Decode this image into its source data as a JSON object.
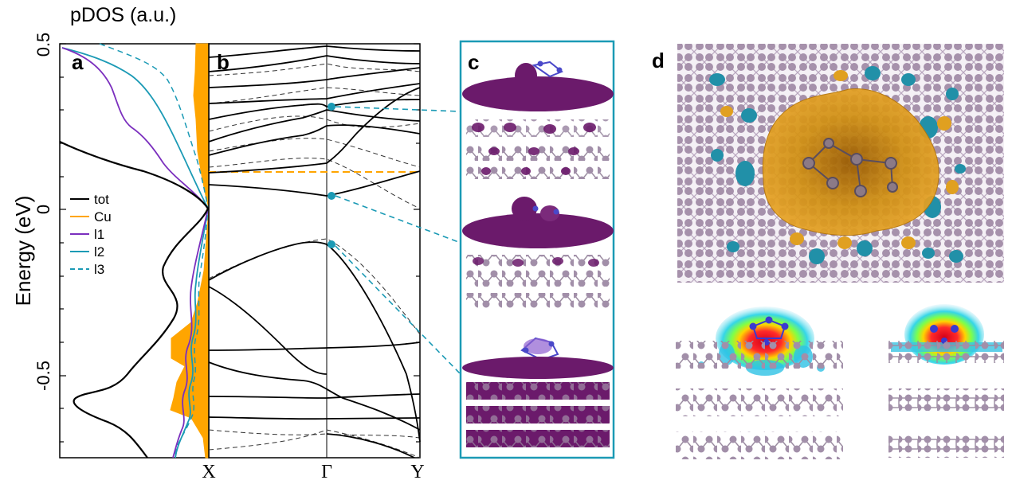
{
  "figure": {
    "top_title": "pDOS (a.u.)",
    "ylabel": "Energy (eV)",
    "panel_a": "a",
    "panel_b": "b",
    "panel_c": "c",
    "panel_d": "d",
    "yticks": [
      "0.5",
      "0",
      "-0.5"
    ],
    "xticks": [
      "X",
      "Γ",
      "Y"
    ]
  },
  "chart_data": [
    {
      "panel": "a",
      "type": "line",
      "title": "",
      "xlabel": "pDOS (a.u.)",
      "ylabel": "Energy (eV)",
      "ylim": [
        -0.75,
        0.5
      ],
      "legend": [
        "tot",
        "Cu",
        "l1",
        "l2",
        "l3"
      ],
      "legend_position": "center-left",
      "colors": {
        "tot": "#000000",
        "Cu": "#FFA500",
        "l1": "#7B2FBE",
        "l2": "#1B9AB5",
        "l3": "#1B9AB5"
      },
      "series": [
        {
          "name": "tot",
          "values": [
            [
              0.0,
              0.2
            ],
            [
              0.6,
              0.12
            ],
            [
              0.95,
              0.0
            ],
            [
              0.55,
              -0.2
            ],
            [
              0.2,
              -0.55
            ],
            [
              0.6,
              -0.65
            ],
            [
              0.8,
              -0.75
            ]
          ]
        },
        {
          "name": "Cu",
          "values": [
            [
              -0.2,
              0.5
            ],
            [
              -0.12,
              0.3
            ],
            [
              -0.05,
              0.1
            ],
            [
              0.0,
              0.0
            ],
            [
              -0.05,
              -0.3
            ],
            [
              -0.35,
              -0.45
            ],
            [
              -0.1,
              -0.55
            ],
            [
              -0.05,
              -0.75
            ]
          ]
        },
        {
          "name": "l1",
          "values": [
            [
              0.0,
              0.5
            ],
            [
              0.3,
              0.43
            ],
            [
              0.5,
              0.25
            ],
            [
              0.78,
              0.12
            ],
            [
              0.97,
              0.0
            ],
            [
              0.95,
              -0.3
            ],
            [
              0.85,
              -0.5
            ],
            [
              0.75,
              -0.75
            ]
          ]
        },
        {
          "name": "l2",
          "values": [
            [
              0.0,
              0.5
            ],
            [
              0.5,
              0.42
            ],
            [
              0.75,
              0.3
            ],
            [
              0.92,
              0.15
            ],
            [
              0.98,
              0.0
            ],
            [
              0.9,
              -0.3
            ],
            [
              0.88,
              -0.55
            ],
            [
              0.8,
              -0.75
            ]
          ]
        },
        {
          "name": "l3",
          "values": [
            [
              0.0,
              0.5
            ],
            [
              0.7,
              0.4
            ],
            [
              0.88,
              0.25
            ],
            [
              0.97,
              0.1
            ],
            [
              0.99,
              0.0
            ],
            [
              0.94,
              -0.3
            ],
            [
              0.9,
              -0.55
            ],
            [
              0.82,
              -0.75
            ]
          ]
        }
      ]
    },
    {
      "panel": "b",
      "type": "line",
      "title": "",
      "xlabel": "",
      "ylabel": "Energy (eV)",
      "ylim": [
        -0.75,
        0.5
      ],
      "categories": [
        "X",
        "Γ",
        "Y"
      ],
      "fermi_dashed": 0.11,
      "highlighted_states": [
        0.31,
        0.04,
        -0.1
      ]
    }
  ]
}
